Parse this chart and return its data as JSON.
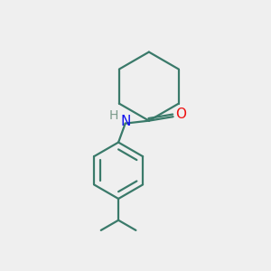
{
  "background_color": "#efefef",
  "bond_color": "#3a7a6a",
  "N_color": "#1010ee",
  "O_color": "#ee1010",
  "H_color": "#7a9a8a",
  "line_width": 1.6,
  "font_size_N": 11,
  "font_size_O": 11,
  "font_size_H": 10,
  "figsize": [
    3.0,
    3.0
  ],
  "dpi": 100,
  "xlim": [
    0,
    10
  ],
  "ylim": [
    0,
    10
  ]
}
